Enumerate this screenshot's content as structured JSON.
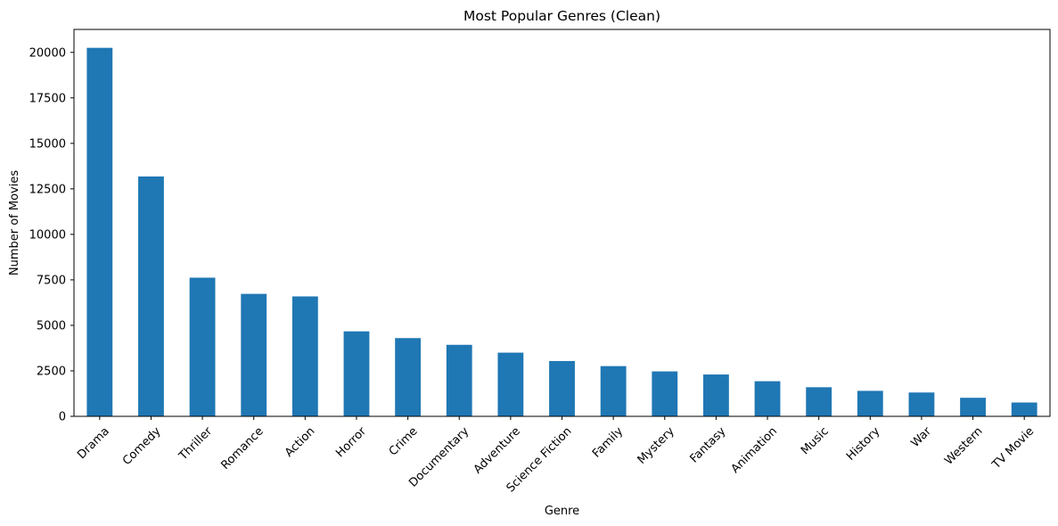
{
  "chart_data": {
    "type": "bar",
    "title": "Most Popular Genres (Clean)",
    "xlabel": "Genre",
    "ylabel": "Number of Movies",
    "categories": [
      "Drama",
      "Comedy",
      "Thriller",
      "Romance",
      "Action",
      "Horror",
      "Crime",
      "Documentary",
      "Adventure",
      "Science Fiction",
      "Family",
      "Mystery",
      "Fantasy",
      "Animation",
      "Music",
      "History",
      "War",
      "Western",
      "TV Movie"
    ],
    "values": [
      20250,
      13180,
      7620,
      6730,
      6590,
      4670,
      4300,
      3930,
      3500,
      3040,
      2760,
      2470,
      2300,
      1930,
      1600,
      1400,
      1310,
      1020,
      760
    ],
    "ylim": [
      0,
      21262
    ],
    "yticks": [
      0,
      2500,
      5000,
      7500,
      10000,
      12500,
      15000,
      17500,
      20000
    ],
    "bar_color": "#1f77b4",
    "grid": false,
    "legend": "none"
  }
}
